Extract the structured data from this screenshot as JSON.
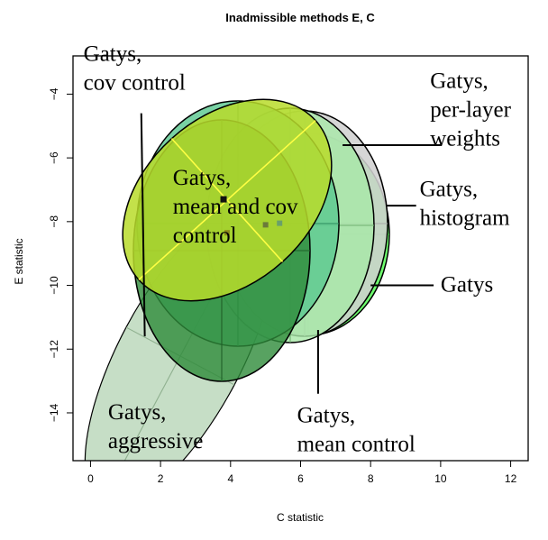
{
  "chart_data": {
    "type": "scatter",
    "title": "Inadmissible methods E, C",
    "xlabel": "C statistic",
    "ylabel": "E statistic",
    "xlim": [
      -0.5,
      12.5
    ],
    "ylim": [
      -15.5,
      -2.8
    ],
    "xticks": [
      0,
      2,
      4,
      6,
      8,
      10,
      12
    ],
    "yticks": [
      -4,
      -6,
      -8,
      -10,
      -12,
      -14
    ],
    "grid": false,
    "series": [
      {
        "name": "Gatys, aggressive",
        "center": [
          3.0,
          -10.4
        ],
        "color": "#bcd8bc",
        "text": [
          "Gatys,",
          "aggressive"
        ],
        "label_at": [
          0.5,
          -14.2
        ],
        "leader": null
      },
      {
        "name": "Gatys",
        "center": [
          5.5,
          -8.2
        ],
        "color": "#66ff66",
        "text": [
          "Gatys"
        ],
        "label_at": [
          10.0,
          -10.2
        ],
        "leader": {
          "from": [
            8.0,
            -10.0
          ],
          "to": [
            9.8,
            -10.0
          ]
        }
      },
      {
        "name": "Gatys, histogram",
        "center": [
          5.3,
          -8.1
        ],
        "color": "#d0d0d0",
        "text": [
          "Gatys,",
          "histogram"
        ],
        "label_at": [
          9.4,
          -7.2
        ],
        "leader": {
          "from": [
            8.45,
            -7.5
          ],
          "to": [
            9.3,
            -7.5
          ]
        }
      },
      {
        "name": "Gatys, per-layer weights",
        "center": [
          5.5,
          -7.9
        ],
        "color": "#a8e8a8",
        "text": [
          "Gatys,",
          "per-layer",
          "weights"
        ],
        "label_at": [
          9.7,
          -3.8
        ],
        "leader": {
          "from": [
            7.2,
            -5.6
          ],
          "to": [
            10.0,
            -5.6
          ]
        }
      },
      {
        "name": "Gatys, mean control",
        "center": [
          5.0,
          -8.1
        ],
        "color": "#5cc890",
        "text": [
          "Gatys,",
          "mean control"
        ],
        "label_at": [
          5.9,
          -14.3
        ],
        "leader": {
          "from": [
            6.5,
            -11.4
          ],
          "to": [
            6.5,
            -13.4
          ]
        }
      },
      {
        "name": "Gatys, cov control",
        "center": [
          3.0,
          -10.4
        ],
        "color": "#2e8b3a",
        "text": [
          "Gatys,",
          "cov control"
        ],
        "label_at": [
          -0.2,
          -2.95
        ],
        "leader": {
          "from": [
            1.45,
            -4.6
          ],
          "to": [
            1.55,
            -11.6
          ]
        }
      },
      {
        "name": "Gatys, mean and cov control",
        "center": [
          3.8,
          -7.3
        ],
        "color": "#b8dc2a",
        "text": [
          "Gatys,",
          "mean and cov",
          "control"
        ],
        "label_at": [
          2.35,
          -6.85
        ],
        "leader": null
      }
    ],
    "extra_points": [
      {
        "center": [
          3.9,
          -8.35
        ],
        "color": "#8a8a1a"
      },
      {
        "center": [
          5.0,
          -8.1
        ],
        "color": "#6b7a3a"
      },
      {
        "center": [
          5.4,
          -8.05
        ],
        "color": "#6aa06a"
      }
    ]
  }
}
